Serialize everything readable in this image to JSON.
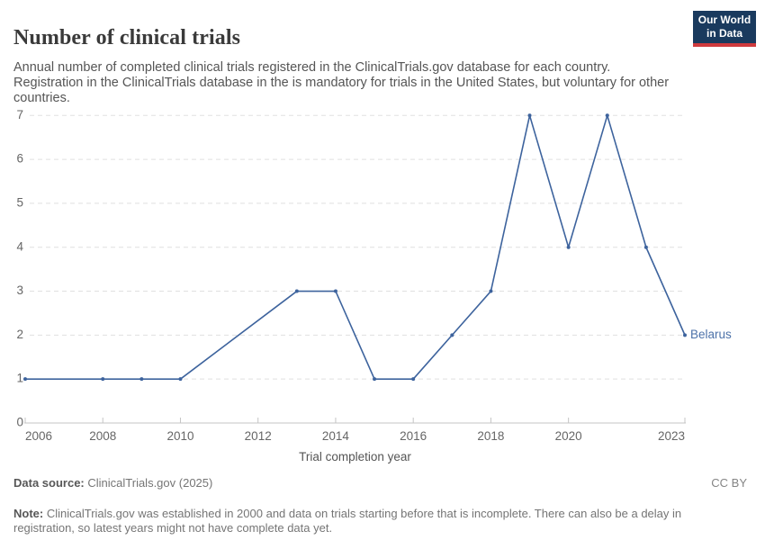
{
  "header": {
    "title": "Number of clinical trials",
    "subtitle": "Annual number of completed clinical trials registered in the ClinicalTrials.gov database for each country. Registration in the ClinicalTrials database in the is mandatory for trials in the United States, but voluntary for other countries."
  },
  "logo": {
    "line1": "Our World",
    "line2": "in Data"
  },
  "chart_data": {
    "type": "line",
    "title": "Number of clinical trials",
    "xlabel": "Trial completion year",
    "ylabel": "",
    "xlim": [
      2006,
      2023
    ],
    "ylim": [
      0,
      7
    ],
    "x_ticks": [
      2006,
      2008,
      2010,
      2012,
      2014,
      2016,
      2018,
      2020,
      2023
    ],
    "y_ticks": [
      0,
      1,
      2,
      3,
      4,
      5,
      6,
      7
    ],
    "grid": "horizontal-dashed",
    "legend_position": "end-of-line-label",
    "series": [
      {
        "name": "Belarus",
        "points": [
          [
            2006,
            1
          ],
          [
            2008,
            1
          ],
          [
            2009,
            1
          ],
          [
            2010,
            1
          ],
          [
            2013,
            3
          ],
          [
            2014,
            3
          ],
          [
            2015,
            1
          ],
          [
            2016,
            1
          ],
          [
            2017,
            2
          ],
          [
            2018,
            3
          ],
          [
            2019,
            7
          ],
          [
            2020,
            4
          ],
          [
            2021,
            7
          ],
          [
            2022,
            4
          ],
          [
            2023,
            2
          ]
        ]
      }
    ]
  },
  "footer": {
    "data_source_label": "Data source:",
    "data_source_value": "ClinicalTrials.gov (2025)",
    "license": "CC BY",
    "note_label": "Note:",
    "note_text": "ClinicalTrials.gov was established in 2000 and data on trials starting before that is incomplete. There can also be a delay in registration, so latest years might not have complete data yet."
  },
  "colors": {
    "series": "#3d639d",
    "entity_label": "#4d72a9",
    "grid": "#e0e0e0",
    "axis": "#c4c4c4",
    "tick_label": "#666666",
    "axis_title": "#555555",
    "logo_bg": "#1a3a5e",
    "logo_red": "#cf3a3e"
  }
}
